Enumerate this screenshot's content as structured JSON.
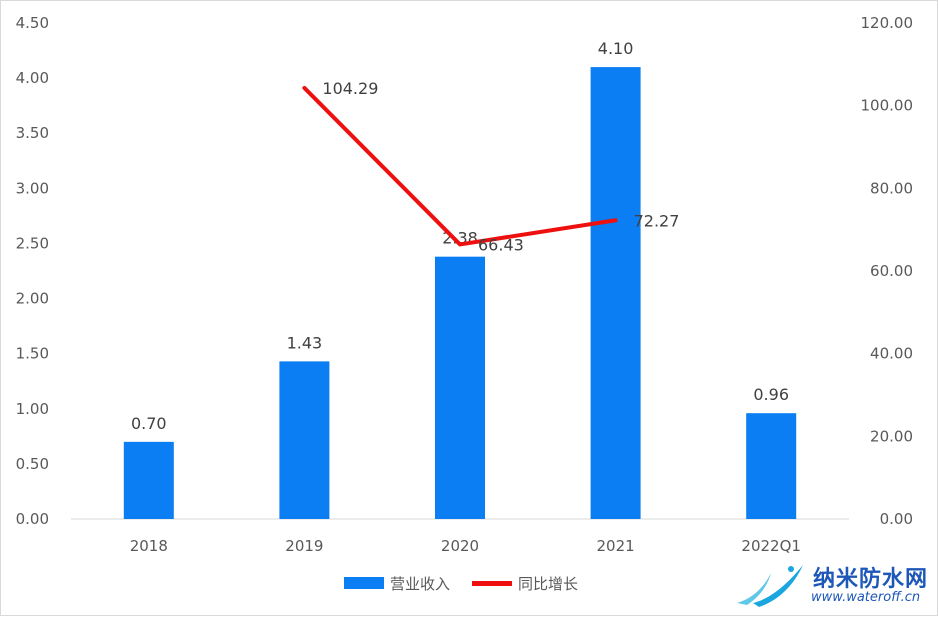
{
  "chart_data": {
    "type": "bar",
    "categories": [
      "2018",
      "2019",
      "2020",
      "2021",
      "2022Q1"
    ],
    "series": [
      {
        "name": "营业收入",
        "type": "bar",
        "axis": "left",
        "values": [
          0.7,
          1.43,
          2.38,
          4.1,
          0.96
        ],
        "labels": [
          "0.70",
          "1.43",
          "2.38",
          "4.10",
          "0.96"
        ],
        "color": "#0a7ef2"
      },
      {
        "name": "同比增长",
        "type": "line",
        "axis": "right",
        "values": [
          null,
          104.29,
          66.43,
          72.27,
          null
        ],
        "labels": [
          "",
          "104.29",
          "66.43",
          "72.27",
          ""
        ],
        "color": "#ee0f0f"
      }
    ],
    "y_left": {
      "lim": [
        0,
        4.5
      ],
      "ticks": [
        "0.00",
        "0.50",
        "1.00",
        "1.50",
        "2.00",
        "2.50",
        "3.00",
        "3.50",
        "4.00",
        "4.50"
      ]
    },
    "y_right": {
      "lim": [
        0,
        120
      ],
      "ticks": [
        "0.00",
        "20.00",
        "40.00",
        "60.00",
        "80.00",
        "100.00",
        "120.00"
      ]
    },
    "grid": false,
    "legend": "bottom"
  },
  "colors": {
    "axis_text": "#595959",
    "label_text": "#404040",
    "axis_line": "#d9d9d9"
  },
  "watermark": {
    "name": "纳米防水网",
    "url": "www.wateroff.cn",
    "logo_icon": "water-wave-icon"
  }
}
